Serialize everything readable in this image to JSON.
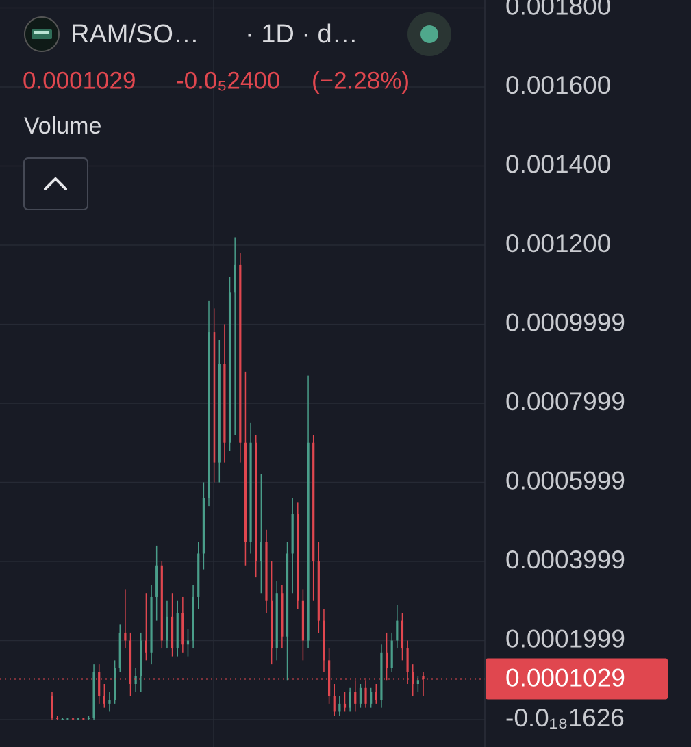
{
  "header": {
    "symbol": "RAM/SO…",
    "interval": "· 1D · d…",
    "price": "0.0001029",
    "change": "-0.0₅2400",
    "change_percent": "(−2.28%)",
    "indicator": "Volume"
  },
  "chart_data": {
    "type": "candlestick",
    "ylim": [
      -6.93e-05,
      0.00182
    ],
    "yticks": [
      {
        "value": -1.626e-19,
        "label": "-0.0₁₈1626"
      },
      0.0001999,
      0.0003999,
      0.0005999,
      0.0007999,
      0.0009999,
      {
        "value": 0.0012,
        "label": "0.001200"
      },
      {
        "value": 0.0014,
        "label": "0.001400"
      },
      {
        "value": 0.0016,
        "label": "0.001600"
      },
      {
        "value": 0.0018,
        "label": "0.001800"
      }
    ],
    "grid": true,
    "up_color": "#4a9e8a",
    "down_color": "#e0474f",
    "price_line": {
      "value": 0.0001029,
      "label": "0.0001029"
    },
    "candles": [
      [
        6e-05,
        7e-05,
        0.0,
        5e-06
      ],
      [
        5e-06,
        1e-05,
        0.0,
        2e-06
      ],
      [
        2e-06,
        4e-06,
        0.0,
        2e-06
      ],
      [
        2e-06,
        4e-06,
        0.0,
        3e-06
      ],
      [
        3e-06,
        5e-06,
        0.0,
        2e-06
      ],
      [
        2e-06,
        4e-06,
        0.0,
        3e-06
      ],
      [
        3e-06,
        5e-06,
        0.0,
        2e-06
      ],
      [
        2e-06,
        1e-05,
        0.0,
        5e-06
      ],
      [
        5e-06,
        0.00014,
        0.0,
        0.00012
      ],
      [
        0.00012,
        0.00014,
        4e-05,
        6e-05
      ],
      [
        6e-05,
        9e-05,
        3e-05,
        4e-05
      ],
      [
        4e-05,
        7e-05,
        2e-05,
        5e-05
      ],
      [
        5e-05,
        0.00015,
        4e-05,
        0.00013
      ],
      [
        0.00013,
        0.00024,
        0.00012,
        0.00022
      ],
      [
        0.00022,
        0.00033,
        0.00018,
        0.0002
      ],
      [
        0.0002,
        0.00022,
        6e-05,
        9e-05
      ],
      [
        9e-05,
        0.00013,
        7e-05,
        0.00011
      ],
      [
        0.00011,
        0.00022,
        7e-05,
        0.0002
      ],
      [
        0.0002,
        0.00032,
        0.00015,
        0.00017
      ],
      [
        0.00017,
        0.00034,
        0.00014,
        0.00031
      ],
      [
        0.00031,
        0.00044,
        0.00025,
        0.00039
      ],
      [
        0.00039,
        0.0004,
        0.00018,
        0.0002
      ],
      [
        0.0002,
        0.0003,
        0.00018,
        0.00026
      ],
      [
        0.00026,
        0.00032,
        0.00016,
        0.00018
      ],
      [
        0.00018,
        0.0003,
        0.00016,
        0.00027
      ],
      [
        0.00027,
        0.00031,
        0.00017,
        0.00019
      ],
      [
        0.00019,
        0.00023,
        0.00016,
        0.0002
      ],
      [
        0.0002,
        0.00034,
        0.00018,
        0.00031
      ],
      [
        0.00031,
        0.00045,
        0.00028,
        0.00042
      ],
      [
        0.00042,
        0.0006,
        0.00038,
        0.00056
      ],
      [
        0.00056,
        0.00106,
        0.00054,
        0.00098
      ],
      [
        0.00098,
        0.00104,
        0.0006,
        0.00065
      ],
      [
        0.00065,
        0.00096,
        0.0006,
        0.0009
      ],
      [
        0.0009,
        0.001,
        0.00065,
        0.0007
      ],
      [
        0.0007,
        0.00112,
        0.00068,
        0.00108
      ],
      [
        0.00108,
        0.00122,
        0.00072,
        0.00115
      ],
      [
        0.00115,
        0.00118,
        0.00065,
        0.0007
      ],
      [
        0.0007,
        0.00088,
        0.00039,
        0.00045
      ],
      [
        0.00045,
        0.00075,
        0.00042,
        0.0007
      ],
      [
        0.0007,
        0.00072,
        0.00036,
        0.0004
      ],
      [
        0.0004,
        0.00062,
        0.00032,
        0.00045
      ],
      [
        0.00045,
        0.00048,
        0.00027,
        0.0003
      ],
      [
        0.0003,
        0.0004,
        0.00014,
        0.00018
      ],
      [
        0.00018,
        0.00035,
        0.00015,
        0.00032
      ],
      [
        0.00032,
        0.00034,
        0.00018,
        0.00021
      ],
      [
        0.00021,
        0.00045,
        0.0001,
        0.00042
      ],
      [
        0.00042,
        0.00056,
        0.00032,
        0.00052
      ],
      [
        0.00052,
        0.00055,
        0.00028,
        0.0003
      ],
      [
        0.0003,
        0.00033,
        0.00015,
        0.0002
      ],
      [
        0.0002,
        0.00087,
        0.00018,
        0.0007
      ],
      [
        0.0007,
        0.00072,
        0.0003,
        0.0004
      ],
      [
        0.0004,
        0.00045,
        0.00022,
        0.00025
      ],
      [
        0.00025,
        0.00028,
        0.00012,
        0.00015
      ],
      [
        0.00015,
        0.00018,
        4e-05,
        6e-05
      ],
      [
        6e-05,
        9e-05,
        1e-05,
        2e-05
      ],
      [
        2e-05,
        6e-05,
        1e-05,
        4e-05
      ],
      [
        4e-05,
        7e-05,
        2e-05,
        3e-05
      ],
      [
        3e-05,
        8e-05,
        2e-05,
        7e-05
      ],
      [
        7e-05,
        0.0001,
        2e-05,
        4e-05
      ],
      [
        4e-05,
        9e-05,
        3e-05,
        8e-05
      ],
      [
        8e-05,
        0.0001,
        3e-05,
        4e-05
      ],
      [
        4e-05,
        8e-05,
        3e-05,
        7e-05
      ],
      [
        7e-05,
        9e-05,
        4e-05,
        5e-05
      ],
      [
        5e-05,
        0.00019,
        3e-05,
        0.00017
      ],
      [
        0.00017,
        0.00022,
        0.0001,
        0.00013
      ],
      [
        0.00013,
        0.00022,
        0.00012,
        0.0002
      ],
      [
        0.0002,
        0.00029,
        0.00018,
        0.00025
      ],
      [
        0.00025,
        0.00027,
        0.00015,
        0.00018
      ],
      [
        0.00018,
        0.0002,
        9e-05,
        0.00012
      ],
      [
        0.00012,
        0.00014,
        6e-05,
        9e-05
      ],
      [
        9e-05,
        0.00011,
        7e-05,
        0.0001
      ],
      [
        0.00011,
        0.00012,
        6e-05,
        0.0001029
      ]
    ]
  }
}
